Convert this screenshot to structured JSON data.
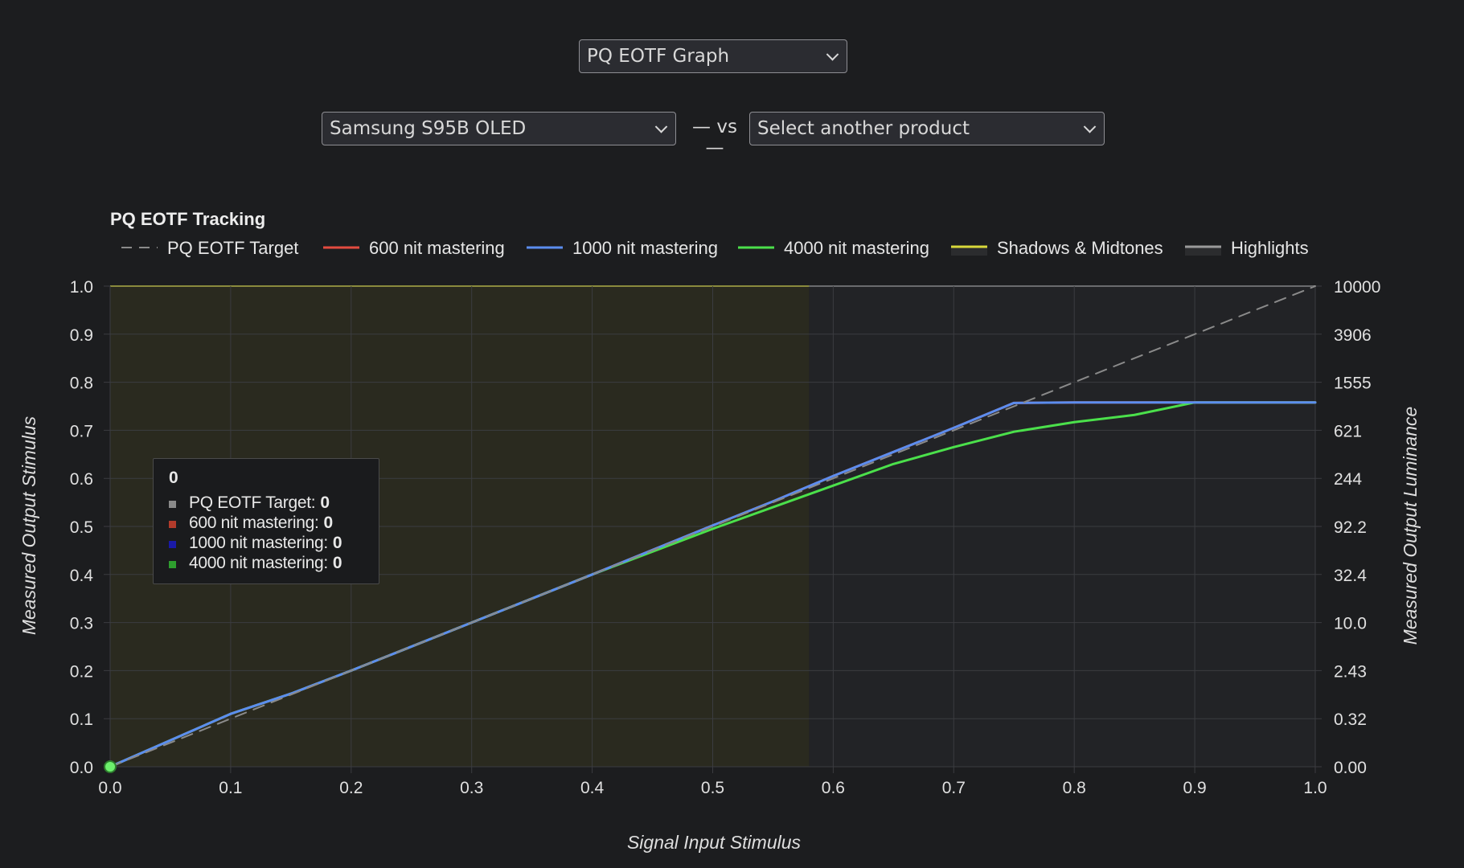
{
  "graph_selector": {
    "value": "PQ EOTF Graph"
  },
  "product_a": {
    "value": "Samsung S95B OLED"
  },
  "vs_label": "— vs —",
  "product_b": {
    "value": "Select another product"
  },
  "chart_data": {
    "type": "line",
    "title": "PQ EOTF Tracking",
    "xlabel": "Signal Input Stimulus",
    "ylabel": "Measured Output Stimulus",
    "y2label": "Measured Output Luminance",
    "xlim": [
      0,
      1
    ],
    "ylim": [
      0,
      1
    ],
    "x_ticks": [
      "0.0",
      "0.1",
      "0.2",
      "0.3",
      "0.4",
      "0.5",
      "0.6",
      "0.7",
      "0.8",
      "0.9",
      "1.0"
    ],
    "y_ticks": [
      "0.0",
      "0.1",
      "0.2",
      "0.3",
      "0.4",
      "0.5",
      "0.6",
      "0.7",
      "0.8",
      "0.9",
      "1.0"
    ],
    "y2_ticks": [
      "0.00",
      "0.32",
      "2.43",
      "10.0",
      "32.4",
      "92.2",
      "244",
      "621",
      "1555",
      "3906",
      "10000"
    ],
    "grid": true,
    "legend_position": "top-left",
    "regions": [
      {
        "name": "Shadows & Midtones",
        "x_range": [
          0,
          0.58
        ],
        "color": "#2a2a1f",
        "line_color": "#d8d83a"
      },
      {
        "name": "Highlights",
        "x_range": [
          0.58,
          1.0
        ],
        "color": "#222326",
        "line_color": "#9a9a9a"
      }
    ],
    "series": [
      {
        "name": "PQ EOTF Target",
        "color": "#8a8a8a",
        "dashed": true,
        "x": [
          0,
          0.1,
          0.2,
          0.3,
          0.4,
          0.5,
          0.6,
          0.7,
          0.8,
          0.9,
          1.0
        ],
        "y": [
          0,
          0.1,
          0.2,
          0.3,
          0.4,
          0.5,
          0.6,
          0.7,
          0.8,
          0.9,
          1.0
        ]
      },
      {
        "name": "600 nit mastering",
        "color": "#e34b3f",
        "x": [
          0,
          0.05,
          0.1,
          0.15,
          0.2,
          0.3,
          0.4,
          0.5,
          0.55,
          0.6,
          0.65,
          0.7,
          0.75,
          0.8,
          0.9,
          1.0
        ],
        "y": [
          0,
          0.055,
          0.11,
          0.152,
          0.2,
          0.3,
          0.4,
          0.502,
          0.552,
          0.605,
          0.655,
          0.705,
          0.757,
          0.758,
          0.758,
          0.758
        ]
      },
      {
        "name": "1000 nit mastering",
        "color": "#5b8def",
        "x": [
          0,
          0.05,
          0.1,
          0.15,
          0.2,
          0.3,
          0.4,
          0.5,
          0.55,
          0.6,
          0.65,
          0.7,
          0.75,
          0.8,
          0.9,
          1.0
        ],
        "y": [
          0,
          0.055,
          0.11,
          0.152,
          0.2,
          0.3,
          0.4,
          0.502,
          0.552,
          0.605,
          0.655,
          0.705,
          0.757,
          0.758,
          0.758,
          0.758
        ]
      },
      {
        "name": "4000 nit mastering",
        "color": "#4be04b",
        "x": [
          0,
          0.05,
          0.1,
          0.15,
          0.2,
          0.3,
          0.4,
          0.5,
          0.55,
          0.6,
          0.65,
          0.7,
          0.75,
          0.8,
          0.85,
          0.9,
          1.0
        ],
        "y": [
          0,
          0.055,
          0.11,
          0.152,
          0.2,
          0.3,
          0.4,
          0.495,
          0.54,
          0.585,
          0.63,
          0.665,
          0.697,
          0.717,
          0.732,
          0.758,
          0.758
        ]
      }
    ],
    "legend": [
      {
        "name": "PQ EOTF Target",
        "color": "#8a8a8a",
        "style": "dashed"
      },
      {
        "name": "600 nit mastering",
        "color": "#e34b3f",
        "style": "line"
      },
      {
        "name": "1000 nit mastering",
        "color": "#5b8def",
        "style": "line"
      },
      {
        "name": "4000 nit mastering",
        "color": "#4be04b",
        "style": "line"
      },
      {
        "name": "Shadows & Midtones",
        "color": "#d8d83a",
        "style": "area"
      },
      {
        "name": "Highlights",
        "color": "#9a9a9a",
        "style": "area"
      }
    ],
    "highlight_point": {
      "x": 0,
      "y": 0,
      "color": "#6cf06c"
    },
    "tooltip": {
      "title": "0",
      "items": [
        {
          "label": "PQ EOTF Target:",
          "value": "0",
          "color": "#8a8a8a"
        },
        {
          "label": "600 nit mastering:",
          "value": "0",
          "color": "#b23b2b"
        },
        {
          "label": "1000 nit mastering:",
          "value": "0",
          "color": "#1a1aa8"
        },
        {
          "label": "4000 nit mastering:",
          "value": "0",
          "color": "#2e9e2e"
        }
      ]
    }
  }
}
